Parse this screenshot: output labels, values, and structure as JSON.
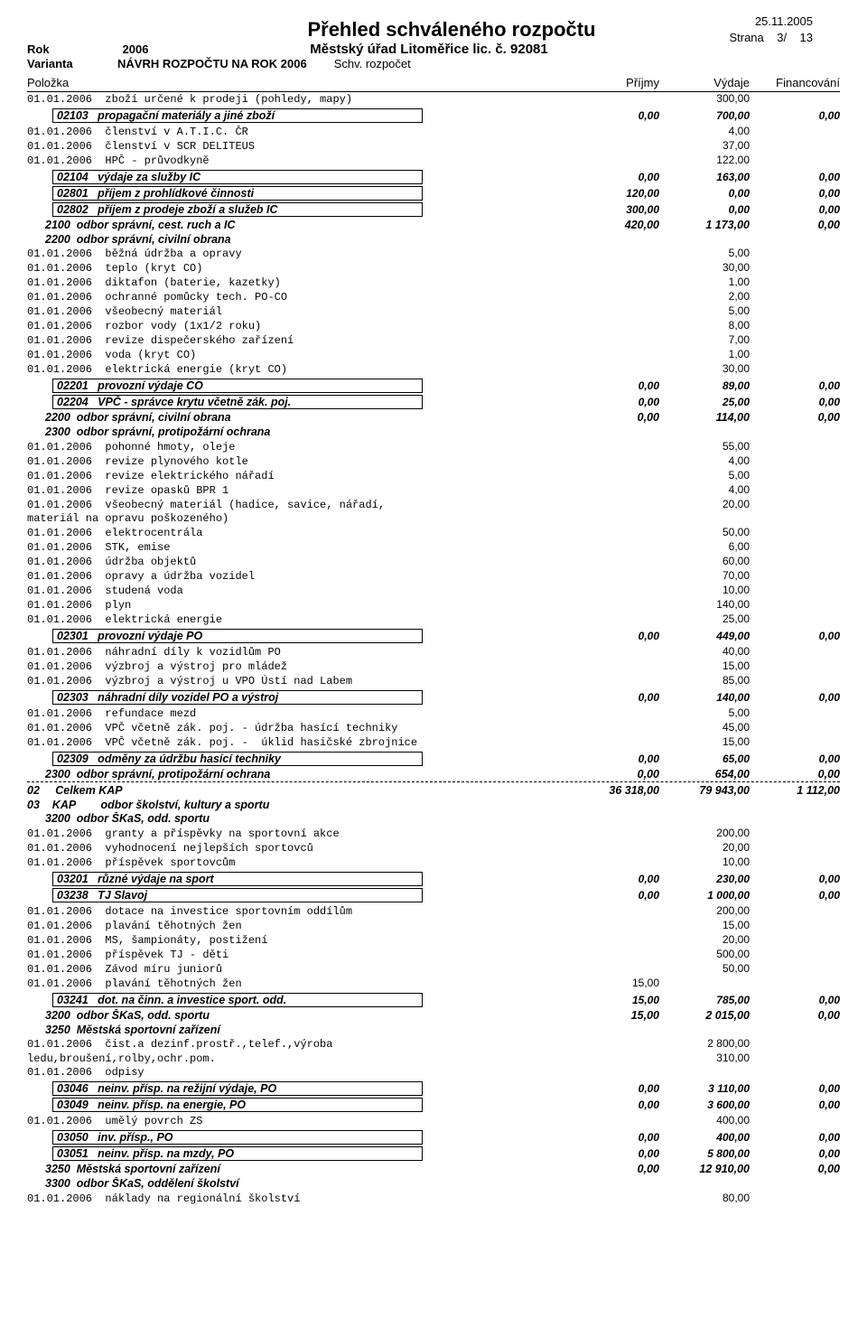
{
  "header": {
    "title": "Přehled schváleného rozpočtu",
    "rok_label": "Rok",
    "rok_value": "2006",
    "subtitle": "Městský úřad Litoměřice lic. č. 92081",
    "varianta_label": "Varianta",
    "varianta_value": "NÁVRH ROZPOČTU NA ROK 2006",
    "schv": "Schv. rozpočet",
    "date": "25.11.2005",
    "page_label": "Strana",
    "page_curr": "3/",
    "page_total": "13",
    "polozka": "Položka",
    "prijmy": "Příjmy",
    "vydaje": "Výdaje",
    "financ": "Financování"
  },
  "rows": [
    {
      "type": "mono",
      "text": "01.01.2006  zboží určené k prodeji (pohledy, mapy)",
      "v": "300,00"
    },
    {
      "type": "box",
      "code": "02103",
      "label": "propagační materiály a jiné zboží",
      "p": "0,00",
      "v": "700,00",
      "f": "0,00"
    },
    {
      "type": "mono",
      "text": "01.01.2006  členství v A.T.I.C. ČR",
      "v": "4,00"
    },
    {
      "type": "mono",
      "text": "01.01.2006  členství v SCR DELITEUS",
      "v": "37,00"
    },
    {
      "type": "mono",
      "text": "01.01.2006  HPČ - průvodkyně",
      "v": "122,00"
    },
    {
      "type": "box",
      "code": "02104",
      "label": "výdaje za služby IC",
      "p": "0,00",
      "v": "163,00",
      "f": "0,00"
    },
    {
      "type": "box",
      "code": "02801",
      "label": "příjem z prohlídkové činnosti",
      "p": "120,00",
      "v": "0,00",
      "f": "0,00"
    },
    {
      "type": "box",
      "code": "02802",
      "label": "příjem z prodeje zboží a služeb IC",
      "p": "300,00",
      "v": "0,00",
      "f": "0,00"
    },
    {
      "type": "sub",
      "text": "2100  odbor správní, cest. ruch a IC",
      "p": "420,00",
      "v": "1 173,00",
      "f": "0,00",
      "indent": 1
    },
    {
      "type": "sub",
      "text": "2200  odbor správní, civilní obrana",
      "indent": 1
    },
    {
      "type": "mono",
      "text": "01.01.2006  běžná údržba a opravy",
      "v": "5,00"
    },
    {
      "type": "mono",
      "text": "01.01.2006  teplo (kryt CO)",
      "v": "30,00"
    },
    {
      "type": "mono",
      "text": "01.01.2006  diktafon (baterie, kazetky)",
      "v": "1,00"
    },
    {
      "type": "mono",
      "text": "01.01.2006  ochranné pomůcky tech. PO-CO",
      "v": "2,00"
    },
    {
      "type": "mono",
      "text": "01.01.2006  všeobecný materiál",
      "v": "5,00"
    },
    {
      "type": "mono",
      "text": "01.01.2006  rozbor vody (1x1/2 roku)",
      "v": "8,00"
    },
    {
      "type": "mono",
      "text": "01.01.2006  revize dispečerského zařízení",
      "v": "7,00"
    },
    {
      "type": "mono",
      "text": "01.01.2006  voda (kryt CO)",
      "v": "1,00"
    },
    {
      "type": "mono",
      "text": "01.01.2006  elektrická energie (kryt CO)",
      "v": "30,00"
    },
    {
      "type": "box",
      "code": "02201",
      "label": "provozní výdaje CO",
      "p": "0,00",
      "v": "89,00",
      "f": "0,00"
    },
    {
      "type": "box",
      "code": "02204",
      "label": "VPČ - správce krytu včetně zák. poj.",
      "p": "0,00",
      "v": "25,00",
      "f": "0,00"
    },
    {
      "type": "sub",
      "text": "2200  odbor správní, civilní obrana",
      "p": "0,00",
      "v": "114,00",
      "f": "0,00",
      "indent": 1
    },
    {
      "type": "sub",
      "text": "2300  odbor správní, protipožární ochrana",
      "indent": 1
    },
    {
      "type": "mono",
      "text": "01.01.2006  pohonné hmoty, oleje",
      "v": "55,00"
    },
    {
      "type": "mono",
      "text": "01.01.2006  revize plynového kotle",
      "v": "4,00"
    },
    {
      "type": "mono",
      "text": "01.01.2006  revize elektrického nářadí",
      "v": "5,00"
    },
    {
      "type": "mono",
      "text": "01.01.2006  revize opasků BPR 1",
      "v": "4,00"
    },
    {
      "type": "mono",
      "text": "01.01.2006  všeobecný materiál (hadice, savice, nářadí,",
      "v": "20,00"
    },
    {
      "type": "mono",
      "text": "materiál na opravu poškozeného)"
    },
    {
      "type": "mono",
      "text": "01.01.2006  elektrocentrála",
      "v": "50,00"
    },
    {
      "type": "mono",
      "text": "01.01.2006  STK, emise",
      "v": "6,00"
    },
    {
      "type": "mono",
      "text": "01.01.2006  údržba objektů",
      "v": "60,00"
    },
    {
      "type": "mono",
      "text": "01.01.2006  opravy a údržba vozidel",
      "v": "70,00"
    },
    {
      "type": "mono",
      "text": "01.01.2006  studená voda",
      "v": "10,00"
    },
    {
      "type": "mono",
      "text": "01.01.2006  plyn",
      "v": "140,00"
    },
    {
      "type": "mono",
      "text": "01.01.2006  elektrická energie",
      "v": "25,00"
    },
    {
      "type": "box",
      "code": "02301",
      "label": "provozní výdaje PO",
      "p": "0,00",
      "v": "449,00",
      "f": "0,00"
    },
    {
      "type": "mono",
      "text": "01.01.2006  náhradní díly k vozidlům PO",
      "v": "40,00"
    },
    {
      "type": "mono",
      "text": "01.01.2006  výzbroj a výstroj pro mládež",
      "v": "15,00"
    },
    {
      "type": "mono",
      "text": "01.01.2006  výzbroj a výstroj u VPO Ústí nad Labem",
      "v": "85,00"
    },
    {
      "type": "box",
      "code": "02303",
      "label": "náhradní díly vozidel PO a výstroj",
      "p": "0,00",
      "v": "140,00",
      "f": "0,00"
    },
    {
      "type": "mono",
      "text": "01.01.2006  refundace mezd",
      "v": "5,00"
    },
    {
      "type": "mono",
      "text": "01.01.2006  VPČ včetně zák. poj. - údržba hasící techniky",
      "v": "45,00"
    },
    {
      "type": "mono",
      "text": "01.01.2006  VPČ včetně zák. poj. -  úklid hasičské zbrojnice",
      "v": "15,00"
    },
    {
      "type": "box",
      "code": "02309",
      "label": "odměny za údržbu hasící techniky",
      "p": "0,00",
      "v": "65,00",
      "f": "0,00"
    },
    {
      "type": "sub",
      "text": "2300  odbor správní, protipožární ochrana",
      "p": "0,00",
      "v": "654,00",
      "f": "0,00",
      "indent": 1
    },
    {
      "type": "dashtotal",
      "text": "02     Celkem KAP",
      "p": "36 318,00",
      "v": "79 943,00",
      "f": "1 112,00"
    },
    {
      "type": "sub",
      "text": "03    KAP        odbor školství, kultury a sportu"
    },
    {
      "type": "sub",
      "text": "3200  odbor ŠKaS, odd. sportu",
      "indent": 1
    },
    {
      "type": "mono",
      "text": "01.01.2006  granty a příspěvky na sportovní akce",
      "v": "200,00"
    },
    {
      "type": "mono",
      "text": "01.01.2006  vyhodnocení nejlepších sportovců",
      "v": "20,00"
    },
    {
      "type": "mono",
      "text": "01.01.2006  příspěvek sportovcům",
      "v": "10,00"
    },
    {
      "type": "box",
      "code": "03201",
      "label": "různé výdaje na sport",
      "p": "0,00",
      "v": "230,00",
      "f": "0,00"
    },
    {
      "type": "box",
      "code": "03238",
      "label": "TJ Slavoj",
      "p": "0,00",
      "v": "1 000,00",
      "f": "0,00"
    },
    {
      "type": "mono",
      "text": "01.01.2006  dotace na investice sportovním oddílům",
      "v": "200,00"
    },
    {
      "type": "mono",
      "text": "01.01.2006  plavání těhotných žen",
      "v": "15,00"
    },
    {
      "type": "mono",
      "text": "01.01.2006  MS, šampionáty, postižení",
      "v": "20,00"
    },
    {
      "type": "mono",
      "text": "01.01.2006  příspěvek TJ - děti",
      "v": "500,00"
    },
    {
      "type": "mono",
      "text": "01.01.2006  Závod míru juniorů",
      "v": "50,00"
    },
    {
      "type": "mono",
      "text": "01.01.2006  plavání těhotných žen",
      "p": "15,00"
    },
    {
      "type": "box",
      "code": "03241",
      "label": "dot. na činn. a investice sport. odd.",
      "p": "15,00",
      "v": "785,00",
      "f": "0,00"
    },
    {
      "type": "sub",
      "text": "3200  odbor ŠKaS, odd. sportu",
      "p": "15,00",
      "v": "2 015,00",
      "f": "0,00",
      "indent": 1
    },
    {
      "type": "sub",
      "text": "3250  Městská sportovní zařízení",
      "indent": 1
    },
    {
      "type": "mono",
      "text": "01.01.2006  čist.a dezinf.prostř.,telef.,výroba",
      "v": "2 800,00"
    },
    {
      "type": "mono",
      "text": "ledu,broušení,rolby,ochr.pom.",
      "v": "310,00"
    },
    {
      "type": "mono",
      "text": "01.01.2006  odpisy"
    },
    {
      "type": "box",
      "code": "03046",
      "label": "neinv. přísp. na režijní výdaje, PO",
      "p": "0,00",
      "v": "3 110,00",
      "f": "0,00"
    },
    {
      "type": "box",
      "code": "03049",
      "label": "neinv. přísp. na energie, PO",
      "p": "0,00",
      "v": "3 600,00",
      "f": "0,00"
    },
    {
      "type": "mono",
      "text": "01.01.2006  umělý povrch ZS",
      "v": "400,00"
    },
    {
      "type": "box",
      "code": "03050",
      "label": "inv. přísp., PO",
      "p": "0,00",
      "v": "400,00",
      "f": "0,00"
    },
    {
      "type": "box",
      "code": "03051",
      "label": "neinv. přísp. na mzdy, PO",
      "p": "0,00",
      "v": "5 800,00",
      "f": "0,00"
    },
    {
      "type": "sub",
      "text": "3250  Městská sportovní zařízení",
      "p": "0,00",
      "v": "12 910,00",
      "f": "0,00",
      "indent": 1
    },
    {
      "type": "sub",
      "text": "3300  odbor ŠKaS, oddělení školství",
      "indent": 1
    },
    {
      "type": "mono",
      "text": "01.01.2006  náklady na regionální školství",
      "v": "80,00"
    }
  ]
}
